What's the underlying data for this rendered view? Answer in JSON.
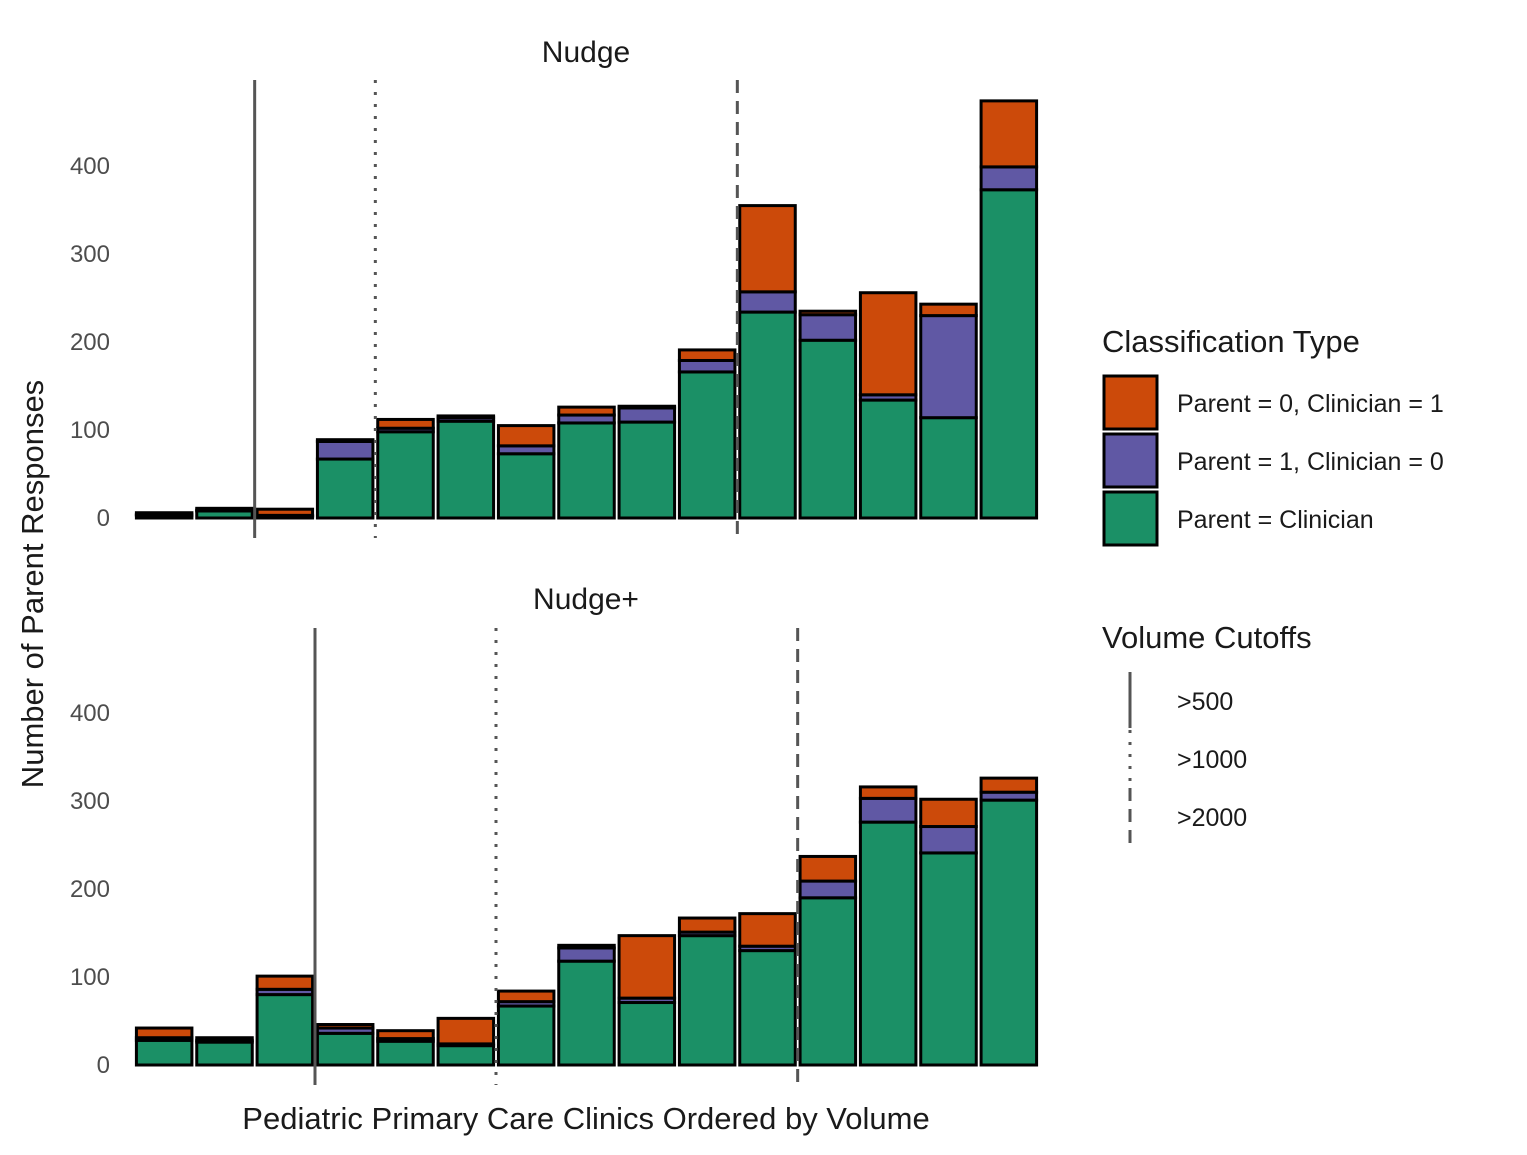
{
  "colors": {
    "parent_clinician": "#1b9066",
    "parent1_clinician0": "#6058a4",
    "parent0_clinician1": "#cc4a0a",
    "cutoff_line": "#555555",
    "bar_outline": "#000000"
  },
  "chart_data": {
    "type": "bar",
    "stacked": true,
    "xlabel": "Pediatric Primary Care Clinics Ordered by Volume",
    "ylabel": "Number of Parent Responses",
    "ylim": [
      0,
      495
    ],
    "yticks": [
      0,
      100,
      200,
      300,
      400
    ],
    "legend": {
      "title": "Classification Type",
      "entries": [
        {
          "key": "p0c1",
          "label": "Parent = 0, Clinician = 1"
        },
        {
          "key": "p1c0",
          "label": "Parent = 1, Clinician = 0"
        },
        {
          "key": "same",
          "label": "Parent = Clinician"
        }
      ]
    },
    "cutoff_legend": {
      "title": "Volume Cutoffs",
      "entries": [
        {
          "style": "solid",
          "label": ">500"
        },
        {
          "style": "dotted",
          "label": ">1000"
        },
        {
          "style": "dashed",
          "label": ">2000"
        }
      ]
    },
    "panels": [
      {
        "title": "Nudge",
        "cutoffs": [
          {
            "style": "solid",
            "after_clinic": 2
          },
          {
            "style": "dotted",
            "after_clinic": 4
          },
          {
            "style": "dashed",
            "after_clinic": 10
          }
        ],
        "series": [
          {
            "name": "Parent = Clinician",
            "key": "same",
            "values": [
              3,
              8,
              2,
              67,
              98,
              110,
              73,
              108,
              109,
              166,
              234,
              202,
              134,
              114,
              373
            ]
          },
          {
            "name": "Parent = 1, Clinician = 0",
            "key": "p1c0",
            "values": [
              1,
              1,
              1,
              20,
              4,
              4,
              9,
              9,
              16,
              13,
              23,
              29,
              6,
              116,
              26
            ]
          },
          {
            "name": "Parent = 0, Clinician = 1",
            "key": "p0c1",
            "values": [
              2,
              2,
              7,
              2,
              10,
              2,
              23,
              9,
              2,
              12,
              98,
              4,
              116,
              13,
              75
            ]
          }
        ]
      },
      {
        "title": "Nudge+",
        "cutoffs": [
          {
            "style": "solid",
            "after_clinic": 3
          },
          {
            "style": "dotted",
            "after_clinic": 6
          },
          {
            "style": "dashed",
            "after_clinic": 11
          }
        ],
        "series": [
          {
            "name": "Parent = Clinician",
            "key": "same",
            "values": [
              28,
              26,
              80,
              36,
              27,
              22,
              67,
              118,
              71,
              147,
              130,
              190,
              276,
              241,
              301
            ]
          },
          {
            "name": "Parent = 1, Clinician = 0",
            "key": "p1c0",
            "values": [
              3,
              2,
              6,
              6,
              3,
              2,
              5,
              15,
              5,
              4,
              5,
              19,
              27,
              30,
              9
            ]
          },
          {
            "name": "Parent = 0, Clinician = 1",
            "key": "p0c1",
            "values": [
              11,
              3,
              15,
              4,
              9,
              29,
              12,
              3,
              71,
              16,
              37,
              28,
              13,
              31,
              16
            ]
          }
        ]
      }
    ]
  }
}
